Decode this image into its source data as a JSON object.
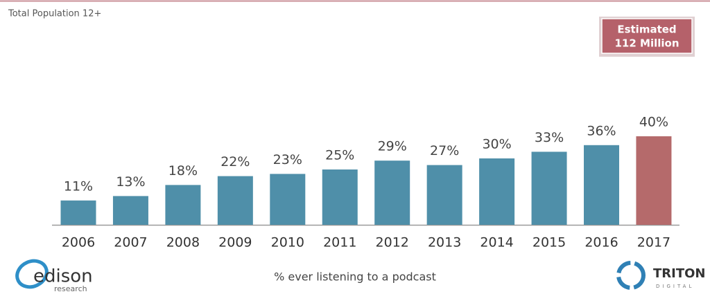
{
  "chart_data": {
    "type": "bar",
    "title": "Total Population 12+",
    "categories": [
      "2006",
      "2007",
      "2008",
      "2009",
      "2010",
      "2011",
      "2012",
      "2013",
      "2014",
      "2015",
      "2016",
      "2017"
    ],
    "values": [
      11,
      13,
      18,
      22,
      23,
      25,
      29,
      27,
      30,
      33,
      36,
      40
    ],
    "value_labels": [
      "11%",
      "13%",
      "18%",
      "22%",
      "23%",
      "25%",
      "29%",
      "27%",
      "30%",
      "33%",
      "36%",
      "40%"
    ],
    "colors": [
      "#4f8fa9",
      "#4f8fa9",
      "#4f8fa9",
      "#4f8fa9",
      "#4f8fa9",
      "#4f8fa9",
      "#4f8fa9",
      "#4f8fa9",
      "#4f8fa9",
      "#4f8fa9",
      "#4f8fa9",
      "#b56a6b"
    ],
    "annotation": [
      "Estimated",
      "112 Million"
    ],
    "x_label": "% ever listening to a podcast"
  },
  "logos": {
    "left": [
      "edison",
      "research"
    ],
    "right": [
      "TRITON",
      "DIGITAL"
    ]
  }
}
